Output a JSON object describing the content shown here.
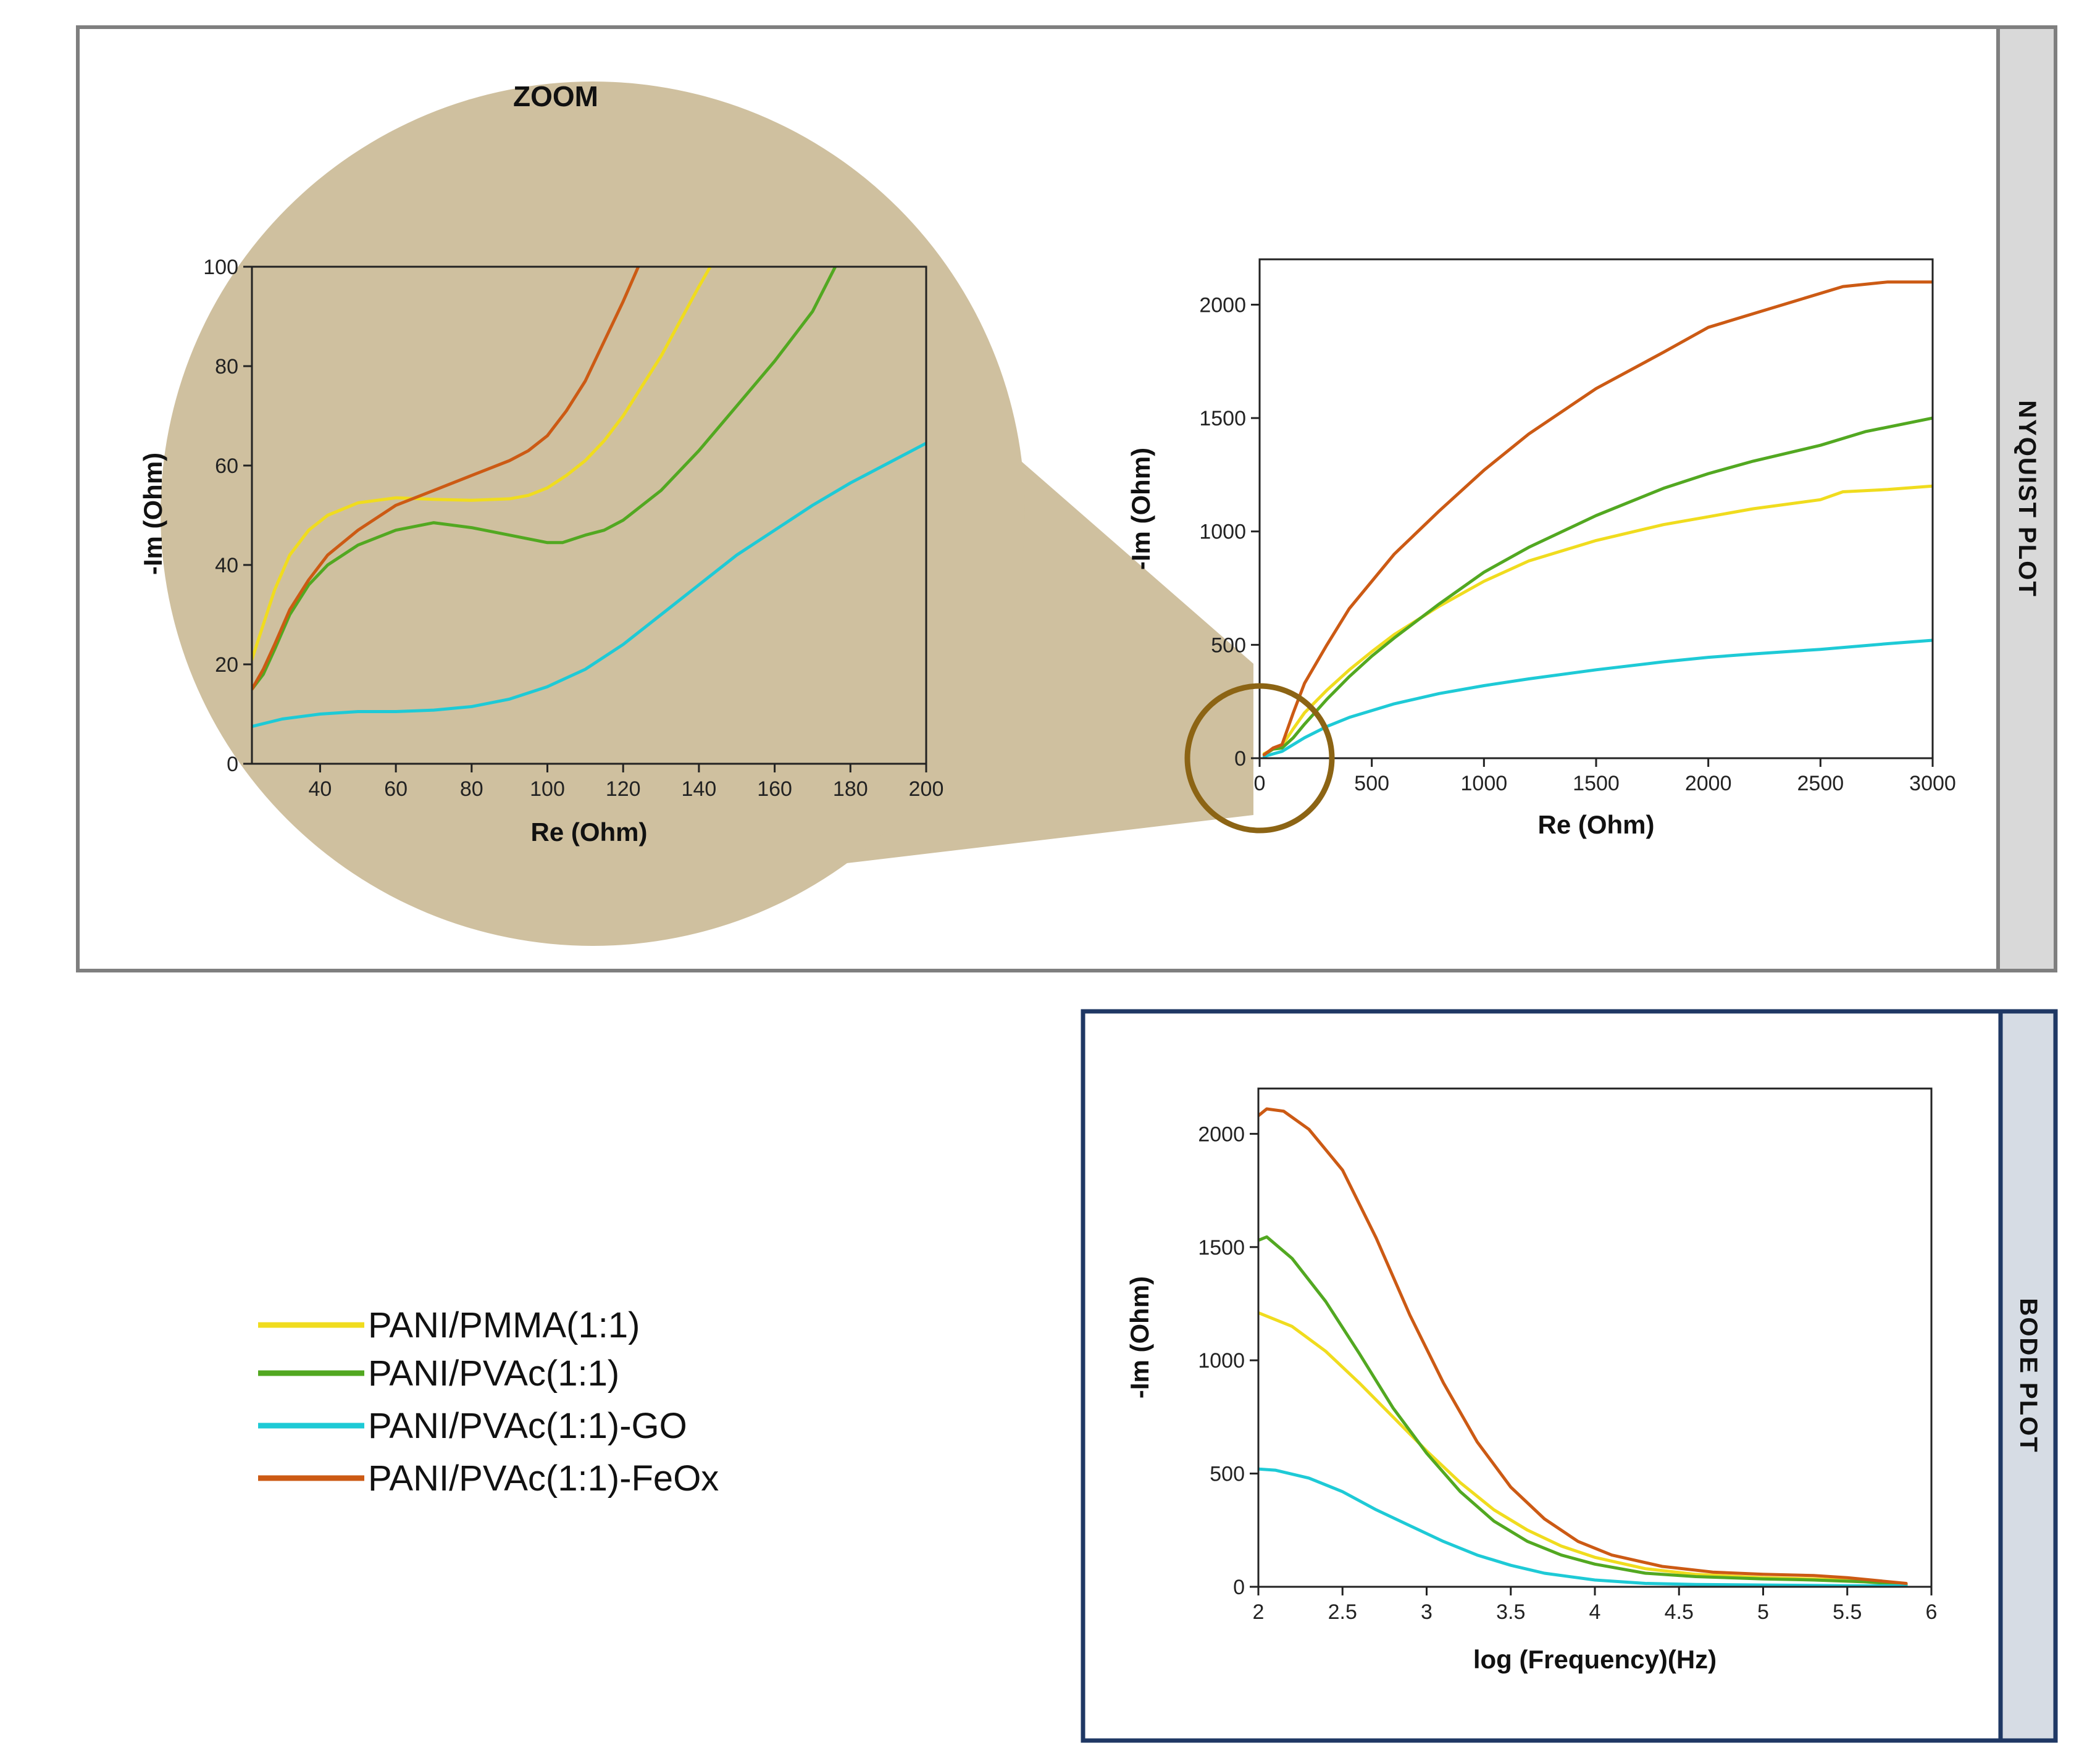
{
  "chart_data": [
    {
      "id": "zoom",
      "type": "line",
      "title": "ZOOM",
      "xlabel": "Re (Ohm)",
      "ylabel": "-Im (Ohm)",
      "xlim": [
        22,
        200
      ],
      "ylim": [
        0,
        100
      ],
      "xticks": [
        40,
        60,
        80,
        100,
        120,
        140,
        160,
        180,
        200
      ],
      "yticks": [
        0,
        20,
        40,
        60,
        80,
        100
      ],
      "series": [
        {
          "name": "PANI/PMMA(1:1)",
          "color": "#f0dc1e",
          "x": [
            22,
            25,
            28,
            32,
            37,
            42,
            50,
            60,
            70,
            80,
            90,
            95,
            100,
            105,
            110,
            115,
            120,
            125,
            130,
            135,
            140,
            143
          ],
          "y": [
            21,
            28,
            35,
            42,
            47,
            50,
            52.5,
            53.5,
            53.2,
            53,
            53.3,
            54,
            55.5,
            58,
            61,
            65,
            70,
            76,
            82,
            89,
            96,
            100
          ]
        },
        {
          "name": "PANI/PVAc(1:1)",
          "color": "#52a821",
          "x": [
            22,
            25,
            28,
            32,
            37,
            42,
            50,
            60,
            70,
            80,
            90,
            100,
            104,
            110,
            115,
            120,
            130,
            140,
            150,
            160,
            170,
            176
          ],
          "y": [
            15,
            18,
            23,
            30,
            36,
            40,
            44,
            47,
            48.5,
            47.5,
            46,
            44.5,
            44.5,
            46,
            47,
            49,
            55,
            63,
            72,
            81,
            91,
            100
          ]
        },
        {
          "name": "PANI/PVAc(1:1)-GO",
          "color": "#1ecad6",
          "x": [
            22,
            30,
            40,
            50,
            60,
            70,
            80,
            90,
            100,
            110,
            120,
            130,
            140,
            150,
            160,
            170,
            180,
            190,
            200
          ],
          "y": [
            7.5,
            9,
            10,
            10.5,
            10.5,
            10.8,
            11.5,
            13,
            15.5,
            19,
            24,
            30,
            36,
            42,
            47,
            52,
            56.5,
            60.5,
            64.5
          ]
        },
        {
          "name": "PANI/PVAc(1:1)-FeOx",
          "color": "#cc5a14",
          "x": [
            22,
            25,
            28,
            32,
            37,
            42,
            50,
            60,
            70,
            80,
            90,
            95,
            100,
            105,
            110,
            115,
            120,
            124
          ],
          "y": [
            15,
            19,
            24,
            31,
            37,
            42,
            47,
            52,
            55,
            58,
            61,
            63,
            66,
            71,
            77,
            85,
            93,
            100
          ]
        }
      ]
    },
    {
      "id": "nyquist",
      "type": "line",
      "title": "NYQUIST PLOT",
      "xlabel": "Re (Ohm)",
      "ylabel": "-Im (Ohm)",
      "xlim": [
        0,
        3000
      ],
      "ylim": [
        0,
        2200
      ],
      "xticks": [
        0,
        500,
        1000,
        1500,
        2000,
        2500,
        3000
      ],
      "yticks": [
        0,
        500,
        1000,
        1500,
        2000
      ],
      "series": [
        {
          "name": "PANI/PMMA(1:1)",
          "color": "#f0dc1e",
          "x": [
            20,
            60,
            100,
            150,
            200,
            300,
            400,
            500,
            600,
            800,
            1000,
            1200,
            1500,
            1800,
            2000,
            2200,
            2500,
            2600,
            2800,
            3000
          ],
          "y": [
            20,
            40,
            55,
            130,
            200,
            300,
            390,
            470,
            545,
            670,
            780,
            870,
            960,
            1030,
            1065,
            1100,
            1140,
            1175,
            1185,
            1200
          ]
        },
        {
          "name": "PANI/PVAc(1:1)",
          "color": "#52a821",
          "x": [
            20,
            60,
            100,
            150,
            200,
            300,
            400,
            500,
            600,
            800,
            1000,
            1200,
            1500,
            1800,
            2000,
            2200,
            2500,
            2700,
            2900,
            3000
          ],
          "y": [
            15,
            40,
            45,
            90,
            150,
            260,
            360,
            450,
            530,
            680,
            820,
            930,
            1070,
            1190,
            1255,
            1310,
            1380,
            1440,
            1480,
            1500
          ]
        },
        {
          "name": "PANI/PVAc(1:1)-GO",
          "color": "#1ecad6",
          "x": [
            20,
            100,
            200,
            300,
            400,
            600,
            800,
            1000,
            1200,
            1500,
            1800,
            2000,
            2200,
            2500,
            2800,
            3000
          ],
          "y": [
            8,
            30,
            90,
            140,
            180,
            240,
            285,
            320,
            350,
            390,
            425,
            445,
            460,
            480,
            505,
            520
          ]
        },
        {
          "name": "PANI/PVAc(1:1)-FeOx",
          "color": "#cc5a14",
          "x": [
            20,
            60,
            100,
            150,
            200,
            300,
            400,
            500,
            600,
            800,
            1000,
            1200,
            1500,
            1800,
            2000,
            2200,
            2400,
            2600,
            2800,
            3000
          ],
          "y": [
            15,
            45,
            60,
            200,
            330,
            500,
            660,
            780,
            900,
            1090,
            1270,
            1430,
            1630,
            1790,
            1900,
            1960,
            2020,
            2080,
            2100,
            2100
          ]
        }
      ]
    },
    {
      "id": "bode",
      "type": "line",
      "title": "BODE PLOT",
      "xlabel": "log (Frequency)(Hz)",
      "ylabel": "-Im (Ohm)",
      "xlim": [
        2,
        6
      ],
      "ylim": [
        0,
        2200
      ],
      "xticks": [
        2,
        2.5,
        3,
        3.5,
        4,
        4.5,
        5,
        5.5,
        6
      ],
      "xticklabels": [
        "2",
        "2.5",
        "3",
        "3.5",
        "4",
        "4.5",
        "5",
        "5.5",
        "6"
      ],
      "yticks": [
        0,
        500,
        1000,
        1500,
        2000
      ],
      "series": [
        {
          "name": "PANI/PMMA(1:1)",
          "color": "#f0dc1e",
          "x": [
            2,
            2.2,
            2.4,
            2.6,
            2.8,
            3,
            3.2,
            3.4,
            3.6,
            3.8,
            4,
            4.3,
            4.6,
            5,
            5.3,
            5.6,
            5.85
          ],
          "y": [
            1210,
            1150,
            1040,
            900,
            750,
            600,
            460,
            340,
            250,
            180,
            130,
            80,
            55,
            40,
            35,
            25,
            10
          ]
        },
        {
          "name": "PANI/PVAc(1:1)",
          "color": "#52a821",
          "x": [
            2,
            2.05,
            2.2,
            2.4,
            2.6,
            2.8,
            3,
            3.2,
            3.4,
            3.6,
            3.8,
            4,
            4.3,
            4.6,
            5,
            5.3,
            5.6,
            5.85
          ],
          "y": [
            1530,
            1545,
            1450,
            1260,
            1030,
            790,
            590,
            420,
            290,
            200,
            140,
            100,
            60,
            45,
            35,
            30,
            22,
            10
          ]
        },
        {
          "name": "PANI/PVAc(1:1)-GO",
          "color": "#1ecad6",
          "x": [
            2,
            2.1,
            2.3,
            2.5,
            2.7,
            2.9,
            3.1,
            3.3,
            3.5,
            3.7,
            4,
            4.3,
            4.6,
            5,
            5.5,
            5.85
          ],
          "y": [
            520,
            515,
            480,
            420,
            340,
            270,
            200,
            140,
            95,
            60,
            30,
            15,
            10,
            8,
            5,
            4
          ]
        },
        {
          "name": "PANI/PVAc(1:1)-FeOx",
          "color": "#cc5a14",
          "x": [
            2,
            2.05,
            2.15,
            2.3,
            2.5,
            2.7,
            2.9,
            3.1,
            3.3,
            3.5,
            3.7,
            3.9,
            4.1,
            4.4,
            4.7,
            5,
            5.3,
            5.5,
            5.85
          ],
          "y": [
            2080,
            2110,
            2100,
            2020,
            1840,
            1540,
            1200,
            900,
            640,
            440,
            300,
            200,
            140,
            90,
            65,
            55,
            50,
            40,
            15
          ]
        }
      ]
    }
  ],
  "labels": {
    "nyquist_side": "NYQUIST PLOT",
    "bode_side": "BODE PLOT",
    "zoom_title": "ZOOM"
  },
  "legend": [
    {
      "label": "PANI/PMMA(1:1)",
      "color": "#f0dc1e"
    },
    {
      "label": "PANI/PVAc(1:1)",
      "color": "#52a821"
    },
    {
      "label": "PANI/PVAc(1:1)-GO",
      "color": "#1ecad6"
    },
    {
      "label": "PANI/PVAc(1:1)-FeOx",
      "color": "#cc5a14"
    }
  ],
  "colors": {
    "zoom_fill": "#cfc09f",
    "magnifier_ring": "#8c6414",
    "nyquist_frame": "#7f7f7f",
    "nyquist_side_fill": "#d9d9d9",
    "bode_frame": "#1f3864",
    "bode_side_fill": "#d6dce4"
  }
}
